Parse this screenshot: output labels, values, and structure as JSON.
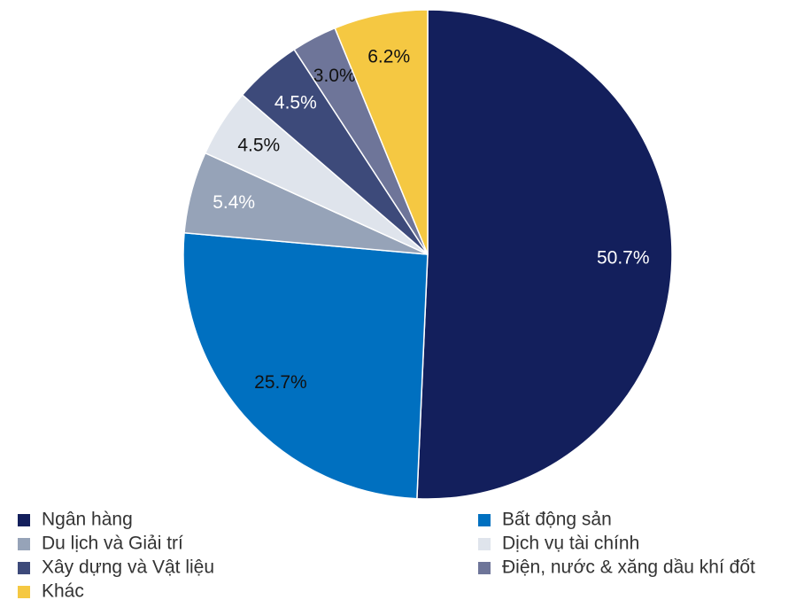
{
  "chart_data": {
    "type": "pie",
    "categories": [
      "Ngân hàng",
      "Bất động sản",
      "Du lịch và Giải trí",
      "Dịch vụ tài chính",
      "Xây dựng và Vật liệu",
      "Điện, nước & xăng dầu khí đốt",
      "Khác"
    ],
    "values": [
      50.7,
      25.7,
      5.4,
      4.5,
      4.5,
      3.0,
      6.2
    ],
    "value_labels": [
      "50.7%",
      "25.7%",
      "5.4%",
      "4.5%",
      "4.5%",
      "3.0%",
      "6.2%"
    ],
    "colors": [
      "#131f5c",
      "#0070c0",
      "#96a3b8",
      "#dfe4ec",
      "#3d4a7a",
      "#6e7599",
      "#f5c842"
    ],
    "label_colors": [
      "#ffffff",
      "#111111",
      "#ffffff",
      "#111111",
      "#ffffff",
      "#111111",
      "#111111"
    ],
    "legend": "bottom"
  }
}
